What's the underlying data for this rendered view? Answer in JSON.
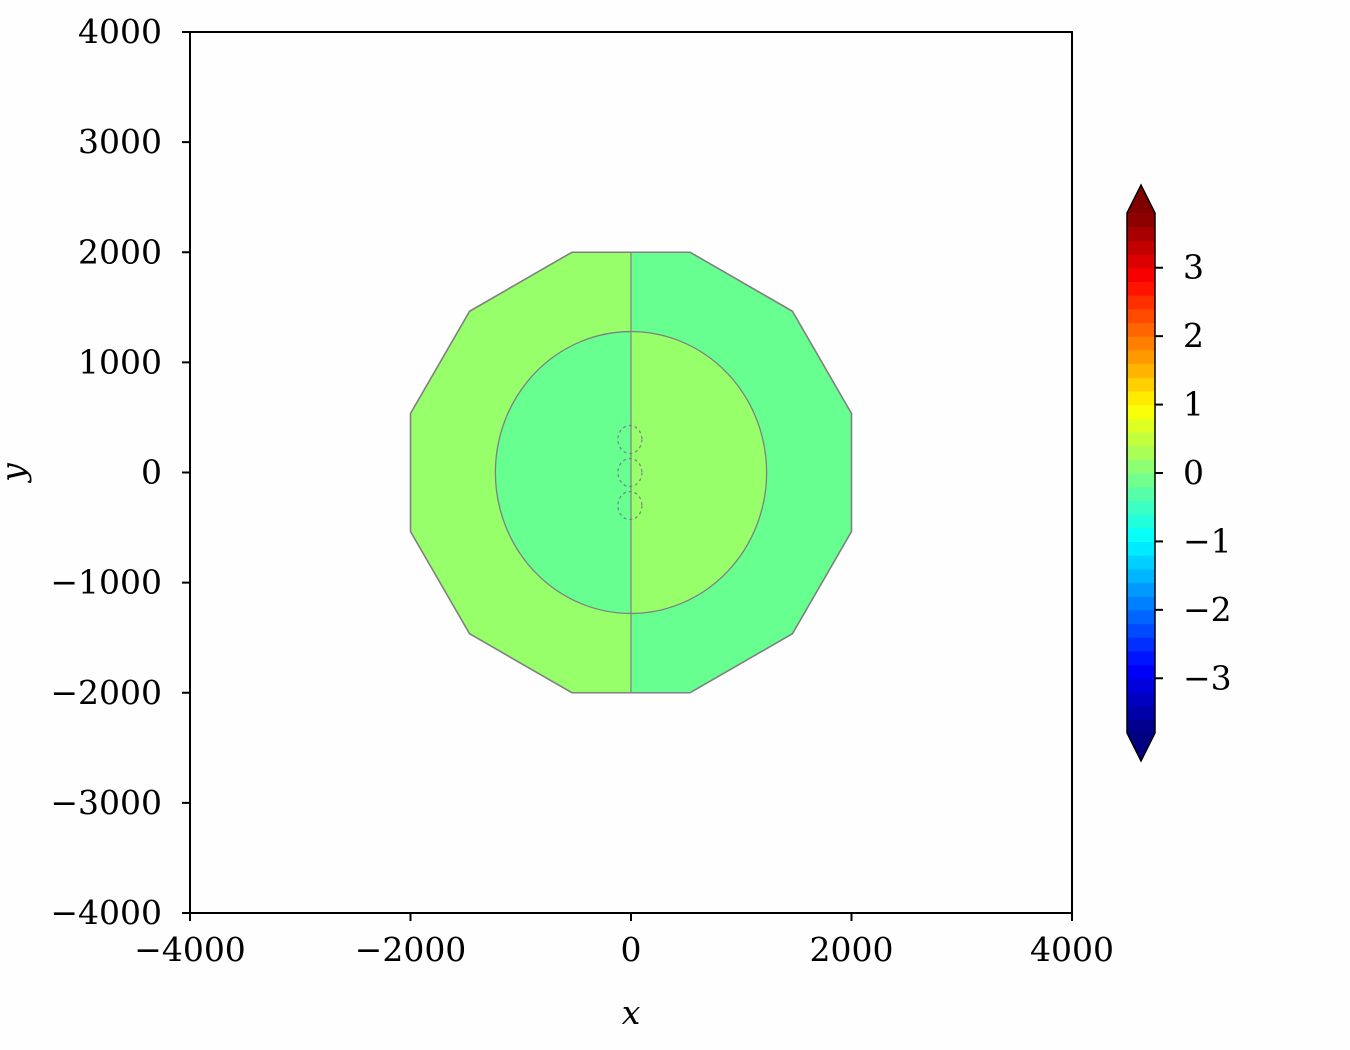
{
  "chart_data": {
    "type": "heatmap",
    "subtype": "filled-contour",
    "xlabel": "x",
    "ylabel": "y",
    "xlim": [
      -4000,
      4000
    ],
    "ylim": [
      -4000,
      4000
    ],
    "xticks": [
      -4000,
      -2000,
      0,
      2000,
      4000
    ],
    "yticks": [
      -4000,
      -3000,
      -2000,
      -1000,
      0,
      1000,
      2000,
      3000,
      4000
    ],
    "grid": false,
    "domain": {
      "shape": "dodecagon",
      "radius": 2000
    },
    "contour_line_color": "#808080",
    "regions": [
      {
        "name": "left-outer",
        "level": 0.2,
        "color": "#96ff6a"
      },
      {
        "name": "right-outer",
        "level": -0.2,
        "color": "#66ff90"
      },
      {
        "name": "inner-left",
        "level": -0.2,
        "color": "#66ff90",
        "semi_axes": [
          1230,
          1280
        ]
      },
      {
        "name": "inner-right",
        "level": 0.2,
        "color": "#96ff6a",
        "semi_axes": [
          1230,
          1280
        ]
      }
    ],
    "colorbar": {
      "colormap": "jet",
      "range": [
        -3.8,
        3.8
      ],
      "ticks": [
        -3,
        -2,
        -1,
        0,
        1,
        2,
        3
      ],
      "extend": "both",
      "placement": "right"
    }
  }
}
